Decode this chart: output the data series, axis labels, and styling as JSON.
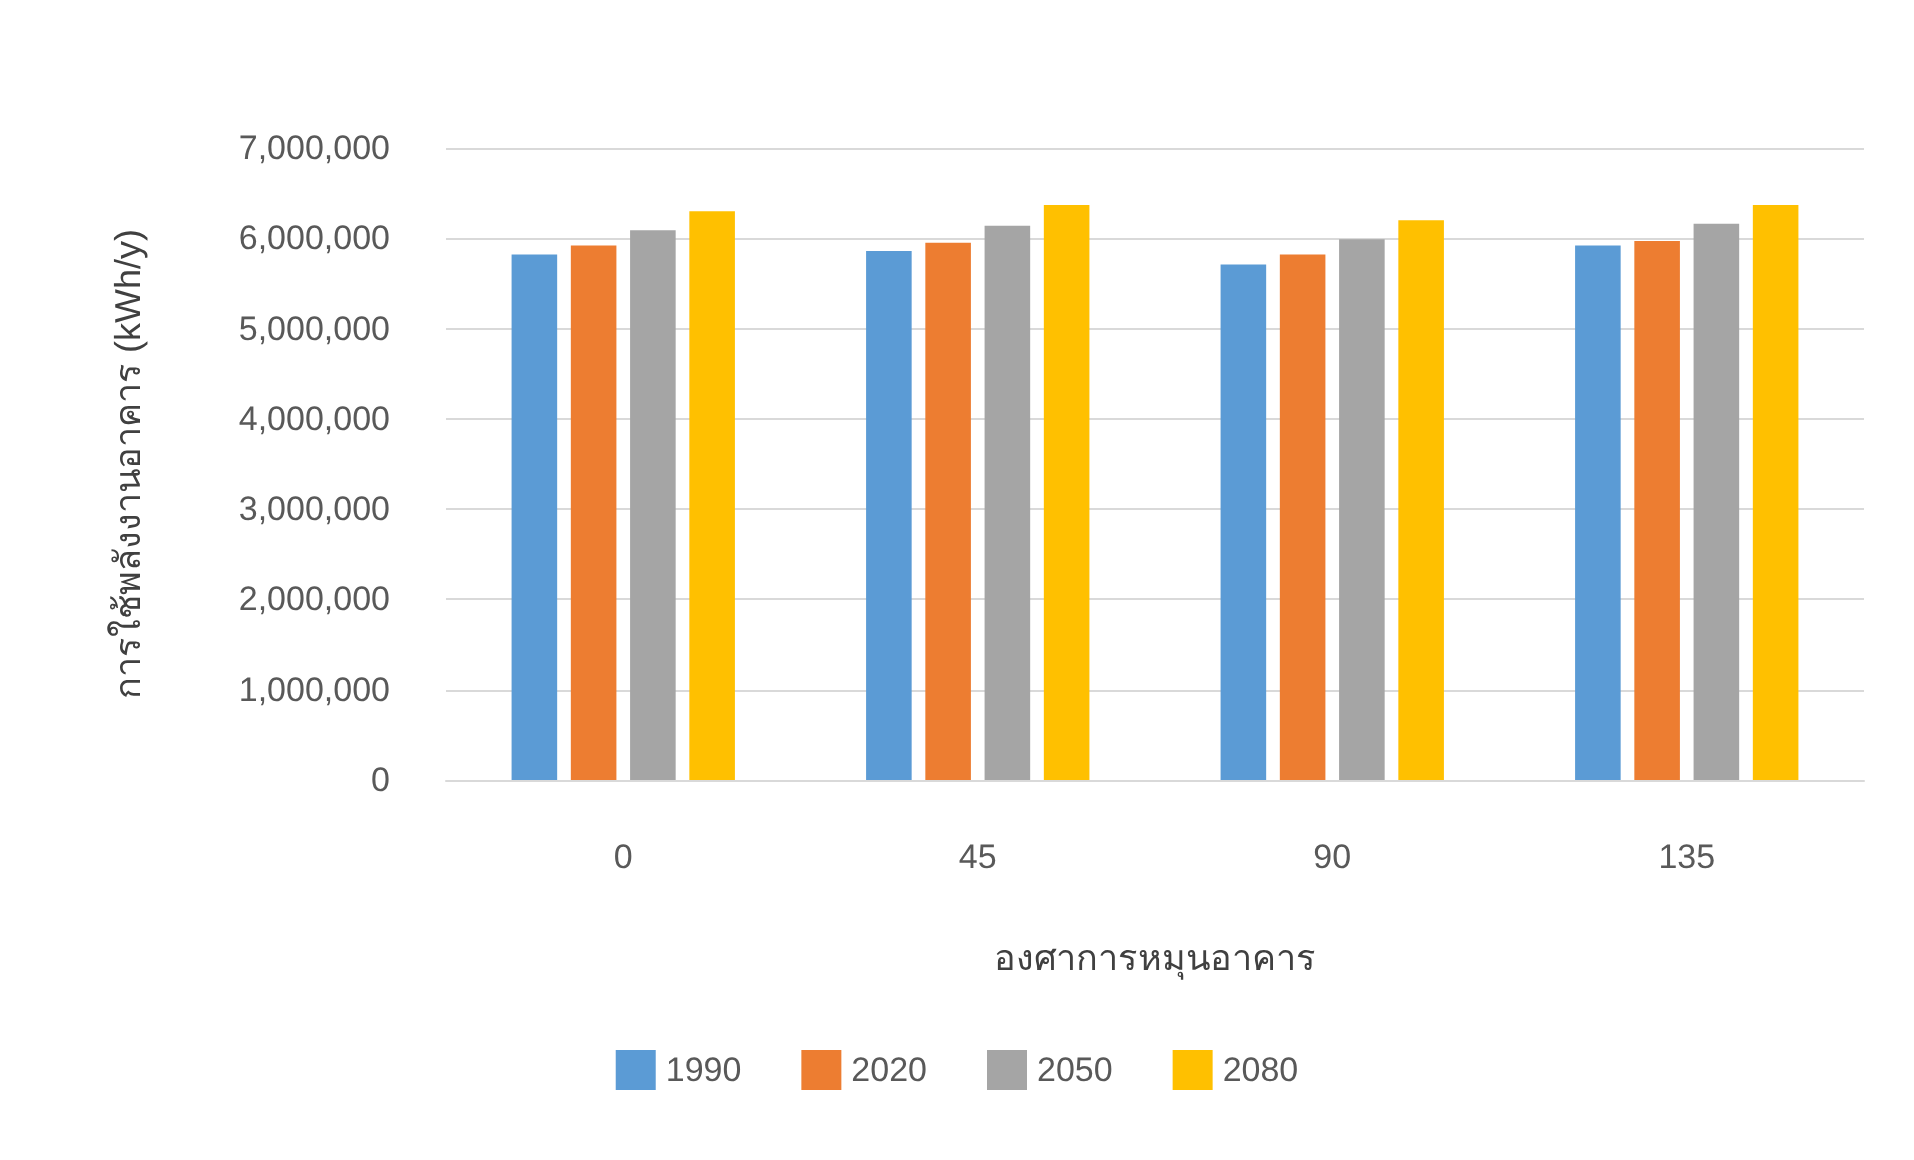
{
  "chart_data": {
    "type": "bar",
    "xlabel": "องศาการหมุนอาคาร",
    "ylabel": "การใช้พลังงานอาคาร (kWh/y)",
    "categories": [
      "0",
      "45",
      "90",
      "135"
    ],
    "series": [
      {
        "name": "1990",
        "color": "#5b9bd5",
        "values": [
          5820000,
          5860000,
          5710000,
          5920000
        ]
      },
      {
        "name": "2020",
        "color": "#ed7d31",
        "values": [
          5920000,
          5950000,
          5820000,
          5970000
        ]
      },
      {
        "name": "2050",
        "color": "#a5a5a5",
        "values": [
          6090000,
          6140000,
          5990000,
          6160000
        ]
      },
      {
        "name": "2080",
        "color": "#ffc000",
        "values": [
          6300000,
          6370000,
          6200000,
          6370000
        ]
      }
    ],
    "ylim": [
      0,
      7000000
    ],
    "yticks": [
      0,
      {
        "value": 1000000,
        "label": "1,000,000"
      },
      {
        "value": 2000000,
        "label": "2,000,000"
      },
      {
        "value": 3000000,
        "label": "3,000,000"
      },
      {
        "value": 4000000,
        "label": "4,000,000"
      },
      {
        "value": 5000000,
        "label": "5,000,000"
      },
      {
        "value": 6000000,
        "label": "6,000,000"
      },
      {
        "value": 7000000,
        "label": "7,000,000"
      }
    ],
    "grid": "y",
    "legend": "bottom"
  }
}
